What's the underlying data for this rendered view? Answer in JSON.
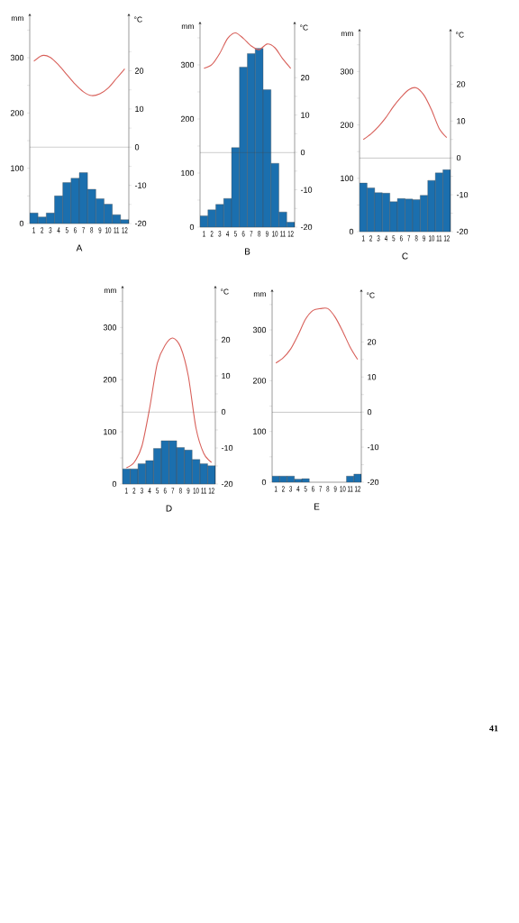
{
  "chart_data": [
    {
      "type": "bar",
      "title": "A",
      "ylabel": "mm",
      "y2label": "°C",
      "categories": [
        "1",
        "2",
        "3",
        "4",
        "5",
        "6",
        "7",
        "8",
        "9",
        "10",
        "11",
        "12"
      ],
      "series": [
        {
          "color": "#1b6fae",
          "values": [
            19,
            12,
            19,
            50,
            74,
            82,
            92,
            62,
            45,
            35,
            16,
            7
          ]
        },
        {
          "type": "line",
          "axis": "y2",
          "color": "#d8605a",
          "values": [
            22.5,
            24,
            23.5,
            21.5,
            19,
            16.5,
            14.5,
            13.5,
            14,
            15.5,
            18,
            20.5
          ]
        }
      ],
      "ylim": [
        0,
        380
      ],
      "yticks": [
        0,
        {
          "value": 50,
          "label": null
        },
        100,
        {
          "value": 150,
          "label": null
        },
        200,
        {
          "value": 250,
          "label": null
        },
        300,
        {
          "value": 350,
          "label": null
        }
      ],
      "y2lim": [
        -20,
        35
      ],
      "y2ticks": [
        -20,
        {
          "value": -15,
          "label": null
        },
        -10,
        {
          "value": -5,
          "label": null
        },
        0,
        {
          "value": 5,
          "label": null
        },
        10,
        {
          "value": 15,
          "label": null
        },
        20,
        {
          "value": 25,
          "label": null
        }
      ],
      "ref_lines": [
        {
          "axis": "y2",
          "value": 0
        }
      ]
    },
    {
      "type": "bar",
      "title": "B",
      "ylabel": "mm",
      "y2label": "°C",
      "categories": [
        "1",
        "2",
        "3",
        "4",
        "5",
        "6",
        "7",
        "8",
        "9",
        "10",
        "11",
        "12"
      ],
      "series": [
        {
          "color": "#1b6fae",
          "values": [
            21,
            32,
            42,
            53,
            147,
            296,
            321,
            331,
            254,
            118,
            28,
            9
          ]
        },
        {
          "type": "line",
          "axis": "y2",
          "color": "#d8605a",
          "values": [
            22.5,
            23.5,
            26.5,
            30.5,
            32,
            30.5,
            28.5,
            27.5,
            29,
            28,
            25,
            22.5
          ]
        }
      ],
      "ylim": [
        0,
        380
      ],
      "yticks": [
        0,
        {
          "value": 50,
          "label": null
        },
        100,
        {
          "value": 150,
          "label": null
        },
        200,
        {
          "value": 250,
          "label": null
        },
        300,
        {
          "value": 350,
          "label": null
        }
      ],
      "y2lim": [
        -20,
        35
      ],
      "y2ticks": [
        -20,
        {
          "value": -15,
          "label": null
        },
        -10,
        {
          "value": -5,
          "label": null
        },
        0,
        {
          "value": 5,
          "label": null
        },
        10,
        {
          "value": 15,
          "label": null
        },
        20,
        {
          "value": 25,
          "label": null
        }
      ],
      "ref_lines": [
        {
          "axis": "y2",
          "value": 0
        }
      ]
    },
    {
      "type": "bar",
      "title": "C",
      "ylabel": "mm",
      "y2label": "°C",
      "categories": [
        "1",
        "2",
        "3",
        "4",
        "5",
        "6",
        "7",
        "8",
        "9",
        "10",
        "11",
        "12"
      ],
      "series": [
        {
          "color": "#1b6fae",
          "values": [
            91,
            82,
            73,
            72,
            56,
            62,
            61,
            60,
            68,
            96,
            110,
            116
          ]
        },
        {
          "type": "line",
          "axis": "y2",
          "color": "#d8605a",
          "values": [
            5,
            6.5,
            8.5,
            11,
            14,
            16.5,
            18.5,
            19,
            17,
            13,
            8,
            5.5
          ]
        }
      ],
      "ylim": [
        0,
        380
      ],
      "yticks": [
        0,
        {
          "value": 50,
          "label": null
        },
        100,
        {
          "value": 150,
          "label": null
        },
        200,
        {
          "value": 250,
          "label": null
        },
        300,
        {
          "value": 350,
          "label": null
        }
      ],
      "y2lim": [
        -20,
        35
      ],
      "y2ticks": [
        -20,
        {
          "value": -15,
          "label": null
        },
        -10,
        {
          "value": -5,
          "label": null
        },
        0,
        {
          "value": 5,
          "label": null
        },
        10,
        {
          "value": 15,
          "label": null
        },
        20,
        {
          "value": 25,
          "label": null
        }
      ],
      "ref_lines": [
        {
          "axis": "y2",
          "value": 0
        }
      ]
    },
    {
      "type": "bar",
      "title": "D",
      "ylabel": "mm",
      "y2label": "°C",
      "categories": [
        "1",
        "2",
        "3",
        "4",
        "5",
        "6",
        "7",
        "8",
        "9",
        "10",
        "11",
        "12"
      ],
      "series": [
        {
          "color": "#1b6fae",
          "values": [
            29,
            29,
            39,
            45,
            68,
            83,
            83,
            70,
            65,
            47,
            39,
            35
          ]
        },
        {
          "type": "line",
          "axis": "y2",
          "color": "#d8605a",
          "values": [
            -15.5,
            -14,
            -9.5,
            1,
            13.5,
            18.5,
            20.5,
            18,
            10,
            -4.5,
            -11.5,
            -14
          ]
        }
      ],
      "ylim": [
        0,
        380
      ],
      "yticks": [
        0,
        {
          "value": 50,
          "label": null
        },
        100,
        {
          "value": 150,
          "label": null
        },
        200,
        {
          "value": 250,
          "label": null
        },
        300,
        {
          "value": 350,
          "label": null
        }
      ],
      "y2lim": [
        -20,
        35
      ],
      "y2ticks": [
        -20,
        {
          "value": -15,
          "label": null
        },
        -10,
        {
          "value": -5,
          "label": null
        },
        0,
        {
          "value": 5,
          "label": null
        },
        10,
        {
          "value": 15,
          "label": null
        },
        20,
        {
          "value": 25,
          "label": null
        }
      ],
      "ref_lines": [
        {
          "axis": "y2",
          "value": 0
        }
      ]
    },
    {
      "type": "bar",
      "title": "E",
      "ylabel": "mm",
      "y2label": "°C",
      "categories": [
        "1",
        "2",
        "3",
        "4",
        "5",
        "6",
        "7",
        "8",
        "9",
        "10",
        "11",
        "12"
      ],
      "series": [
        {
          "color": "#1b6fae",
          "values": [
            12,
            12,
            12,
            6,
            7,
            0,
            0,
            0,
            0,
            0,
            12,
            16
          ]
        },
        {
          "type": "line",
          "axis": "y2",
          "color": "#d8605a",
          "values": [
            14,
            15.5,
            18,
            22,
            26.5,
            29,
            29.5,
            29.5,
            27,
            23,
            18.5,
            15
          ]
        }
      ],
      "ylim": [
        0,
        380
      ],
      "yticks": [
        0,
        {
          "value": 50,
          "label": null
        },
        100,
        {
          "value": 150,
          "label": null
        },
        200,
        {
          "value": 250,
          "label": null
        },
        300,
        {
          "value": 350,
          "label": null
        }
      ],
      "y2lim": [
        -20,
        35
      ],
      "y2ticks": [
        -20,
        {
          "value": -15,
          "label": null
        },
        -10,
        {
          "value": -5,
          "label": null
        },
        0,
        {
          "value": 5,
          "label": null
        },
        10,
        {
          "value": 15,
          "label": null
        },
        20,
        {
          "value": 25,
          "label": null
        }
      ],
      "ref_lines": [
        {
          "axis": "y2",
          "value": 0
        }
      ],
      "annotations": [
        "41"
      ]
    }
  ]
}
